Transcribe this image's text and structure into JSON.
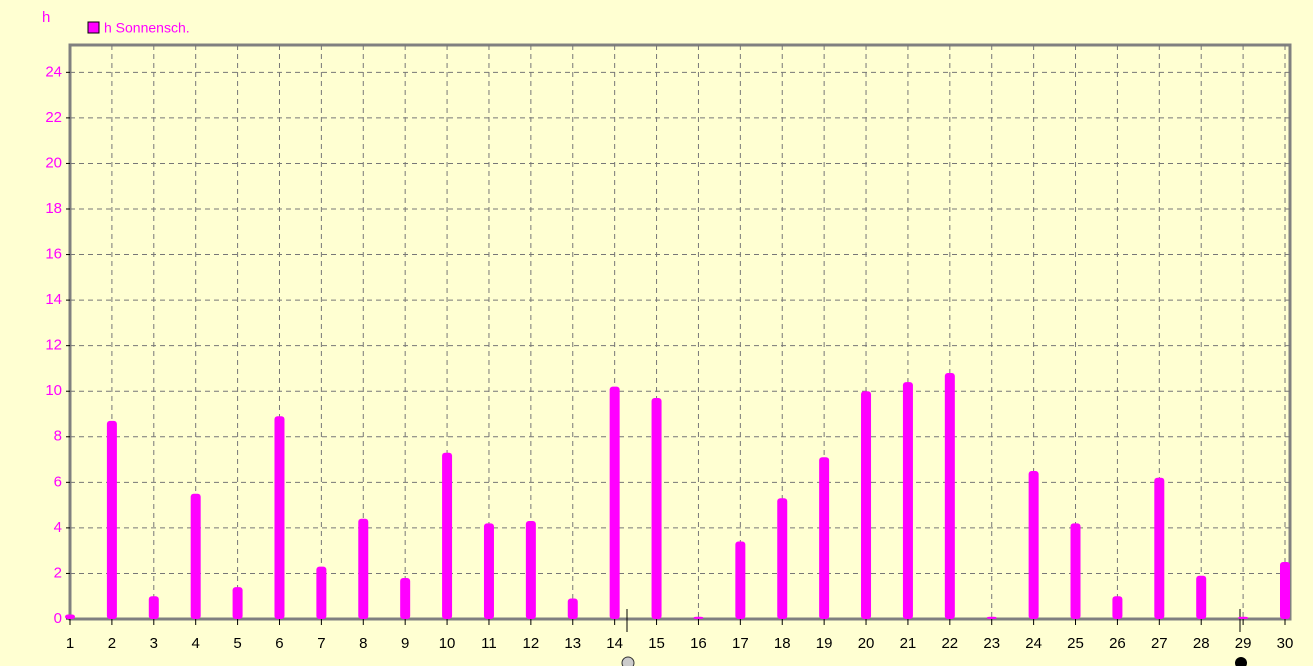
{
  "chart_data": {
    "type": "bar",
    "y_label": "h",
    "x": [
      1,
      2,
      3,
      4,
      5,
      6,
      7,
      8,
      9,
      10,
      11,
      12,
      13,
      14,
      15,
      16,
      17,
      18,
      19,
      20,
      21,
      22,
      23,
      24,
      25,
      26,
      27,
      28,
      29,
      30
    ],
    "series": [
      {
        "name": "h Sonnensch.",
        "color": "#ff00ff",
        "values": [
          0.2,
          8.7,
          1.0,
          5.5,
          1.4,
          8.9,
          2.3,
          4.4,
          1.8,
          7.3,
          4.2,
          4.3,
          0.9,
          10.2,
          9.7,
          0.1,
          3.4,
          5.3,
          7.1,
          10.0,
          10.4,
          10.8,
          0.1,
          6.5,
          4.2,
          1.0,
          6.2,
          1.9,
          0.1,
          2.5
        ]
      }
    ],
    "xlim": [
      1,
      30
    ],
    "xticks": [
      1,
      2,
      3,
      4,
      5,
      6,
      7,
      8,
      9,
      10,
      11,
      12,
      13,
      14,
      15,
      16,
      17,
      18,
      19,
      20,
      21,
      22,
      23,
      24,
      25,
      26,
      27,
      28,
      29,
      30
    ],
    "ylim": [
      0,
      25.2
    ],
    "yticks": [
      0,
      2,
      4,
      6,
      8,
      10,
      12,
      14,
      16,
      18,
      20,
      22,
      24
    ],
    "grid": true
  }
}
